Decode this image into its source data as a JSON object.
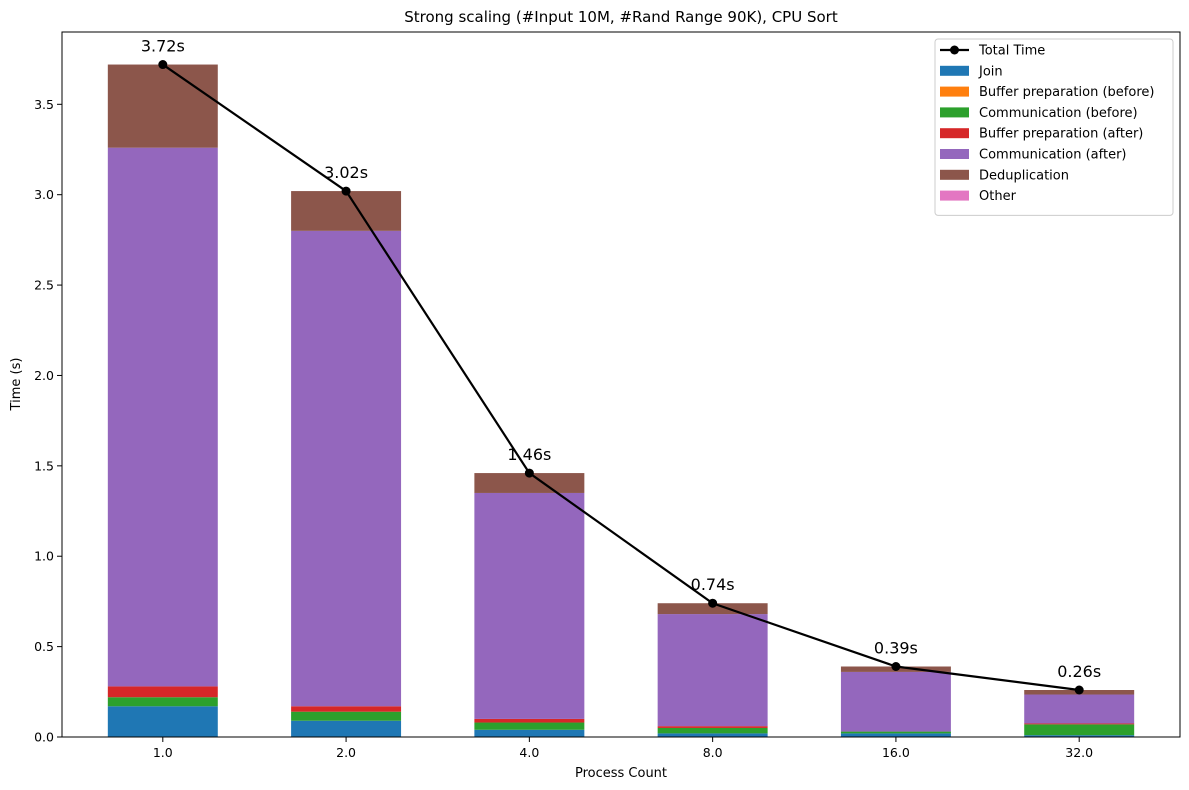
{
  "chart_data": {
    "type": "bar",
    "stacked": true,
    "title": "Strong scaling (#Input 10M, #Rand Range 90K), CPU Sort",
    "xlabel": "Process Count",
    "ylabel": "Time (s)",
    "categories": [
      "1.0",
      "2.0",
      "4.0",
      "8.0",
      "16.0",
      "32.0"
    ],
    "ylim": [
      0,
      3.9
    ],
    "yticks": [
      0.0,
      0.5,
      1.0,
      1.5,
      2.0,
      2.5,
      3.0,
      3.5
    ],
    "ytick_labels": [
      "0.0",
      "0.5",
      "1.0",
      "1.5",
      "2.0",
      "2.5",
      "3.0",
      "3.5"
    ],
    "grid": false,
    "legend_position": "top-right",
    "series": [
      {
        "name": "Join",
        "color": "#1f77b4",
        "values": [
          0.17,
          0.09,
          0.04,
          0.02,
          0.02,
          0.01
        ]
      },
      {
        "name": "Buffer preparation (before)",
        "color": "#ff7f0e",
        "values": [
          0.0,
          0.0,
          0.0,
          0.0,
          0.0,
          0.0
        ]
      },
      {
        "name": "Communication (before)",
        "color": "#2ca02c",
        "values": [
          0.05,
          0.05,
          0.04,
          0.03,
          0.01,
          0.06
        ]
      },
      {
        "name": "Buffer preparation (after)",
        "color": "#d62728",
        "values": [
          0.06,
          0.03,
          0.02,
          0.01,
          0.0,
          0.005
        ]
      },
      {
        "name": "Communication (after)",
        "color": "#9467bd",
        "values": [
          2.98,
          2.63,
          1.25,
          0.62,
          0.33,
          0.16
        ]
      },
      {
        "name": "Deduplication",
        "color": "#8c564b",
        "values": [
          0.46,
          0.22,
          0.11,
          0.06,
          0.03,
          0.025
        ]
      },
      {
        "name": "Other",
        "color": "#e377c2",
        "values": [
          0.0,
          0.0,
          0.0,
          0.0,
          0.0,
          0.0
        ]
      }
    ],
    "line": {
      "name": "Total Time",
      "color": "#000000",
      "values": [
        3.72,
        3.02,
        1.46,
        0.74,
        0.39,
        0.26
      ],
      "labels": [
        "3.72s",
        "3.02s",
        "1.46s",
        "0.74s",
        "0.39s",
        "0.26s"
      ]
    }
  }
}
